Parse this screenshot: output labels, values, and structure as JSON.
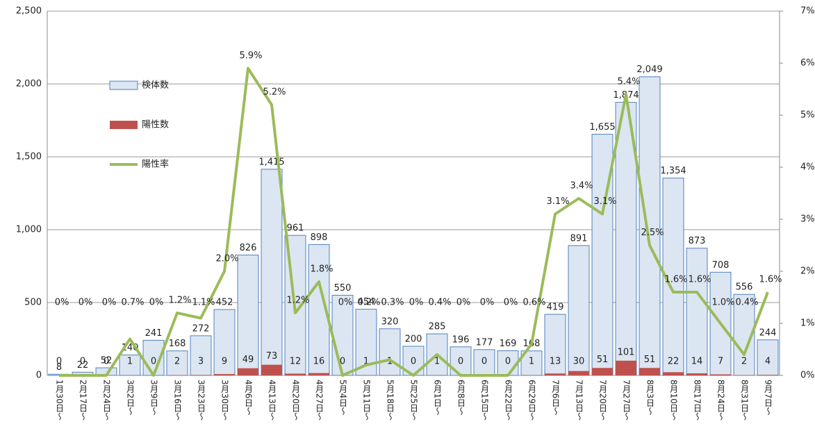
{
  "chart_data": {
    "type": "bar",
    "categories": [
      "1月30日～",
      "2月17日～",
      "2月24日～",
      "3月2日～",
      "3月9日～",
      "3月16日～",
      "3月23日～",
      "3月30日～",
      "4月6日～",
      "4月13日～",
      "4月20日～",
      "4月27日～",
      "5月4日～",
      "5月11日～",
      "5月18日～",
      "5月25日～",
      "6月1日～",
      "6月8日～",
      "6月15日～",
      "6月22日～",
      "6月29日～",
      "7月6日～",
      "7月13日～",
      "7月20日～",
      "7月27日～",
      "8月3日～",
      "8月10日～",
      "8月17日～",
      "8月24日～",
      "8月31日～",
      "9月7日～"
    ],
    "series": [
      {
        "name": "検体数",
        "type": "bar",
        "color": "#dce6f2",
        "stroke": "#4f81bd",
        "values": [
          8,
          22,
          52,
          140,
          241,
          168,
          272,
          452,
          826,
          1415,
          961,
          898,
          550,
          454,
          320,
          200,
          285,
          196,
          177,
          169,
          168,
          419,
          891,
          1655,
          1874,
          2049,
          1354,
          873,
          708,
          556,
          244
        ],
        "value_labels": [
          "8",
          "22",
          "52",
          "140",
          "241",
          "168",
          "272",
          "452",
          "826",
          "1,415",
          "961",
          "898",
          "550",
          "454",
          "320",
          "200",
          "285",
          "196",
          "177",
          "169",
          "168",
          "419",
          "891",
          "1,655",
          "1,874",
          "2,049",
          "1,354",
          "873",
          "708",
          "556",
          "244"
        ]
      },
      {
        "name": "陽性数",
        "type": "bar",
        "color": "#c0504d",
        "values": [
          0,
          0,
          0,
          1,
          0,
          2,
          3,
          9,
          49,
          73,
          12,
          16,
          0,
          1,
          1,
          0,
          1,
          0,
          0,
          0,
          1,
          13,
          30,
          51,
          101,
          51,
          22,
          14,
          7,
          2,
          4
        ]
      },
      {
        "name": "陽性率",
        "type": "line",
        "axis": "y2",
        "color": "#9bbb59",
        "values": [
          0,
          0,
          0,
          0.7,
          0,
          1.2,
          1.1,
          2.0,
          5.9,
          5.2,
          1.2,
          1.8,
          0,
          0.2,
          0.3,
          0,
          0.4,
          0,
          0,
          0,
          0.6,
          3.1,
          3.4,
          3.1,
          5.4,
          2.5,
          1.6,
          1.6,
          1.0,
          0.4,
          1.6
        ],
        "value_labels": [
          "0%",
          "0%",
          "0%",
          "0.7%",
          "0%",
          "1.2%",
          "1.1%",
          "2.0%",
          "5.9%",
          "5.2%",
          "1.2%",
          "1.8%",
          "0%",
          "0.2%",
          "0.3%",
          "0%",
          "0.4%",
          "0%",
          "0%",
          "0%",
          "0.6%",
          "3.1%",
          "3.4%",
          "3.1%",
          "5.4%",
          "2.5%",
          "1.6%",
          "1.6%",
          "1.0%",
          "0.4%",
          "1.6%"
        ]
      }
    ],
    "ylim": [
      0,
      2500
    ],
    "yticks": [
      0,
      500,
      {
        "value": 1000,
        "label": "1,000"
      },
      {
        "value": 1500,
        "label": "1,500"
      },
      {
        "value": 2000,
        "label": "2,000"
      },
      {
        "value": 2500,
        "label": "2,500"
      }
    ],
    "y2lim": [
      0,
      7
    ],
    "y2ticks": [
      {
        "value": 0,
        "label": "0%"
      },
      {
        "value": 1,
        "label": "1%"
      },
      {
        "value": 2,
        "label": "2%"
      },
      {
        "value": 3,
        "label": "3%"
      },
      {
        "value": 4,
        "label": "4%"
      },
      {
        "value": 5,
        "label": "5%"
      },
      {
        "value": 6,
        "label": "6%"
      },
      {
        "value": 7,
        "label": "7%"
      }
    ],
    "grid": true,
    "legend": "upper left"
  }
}
